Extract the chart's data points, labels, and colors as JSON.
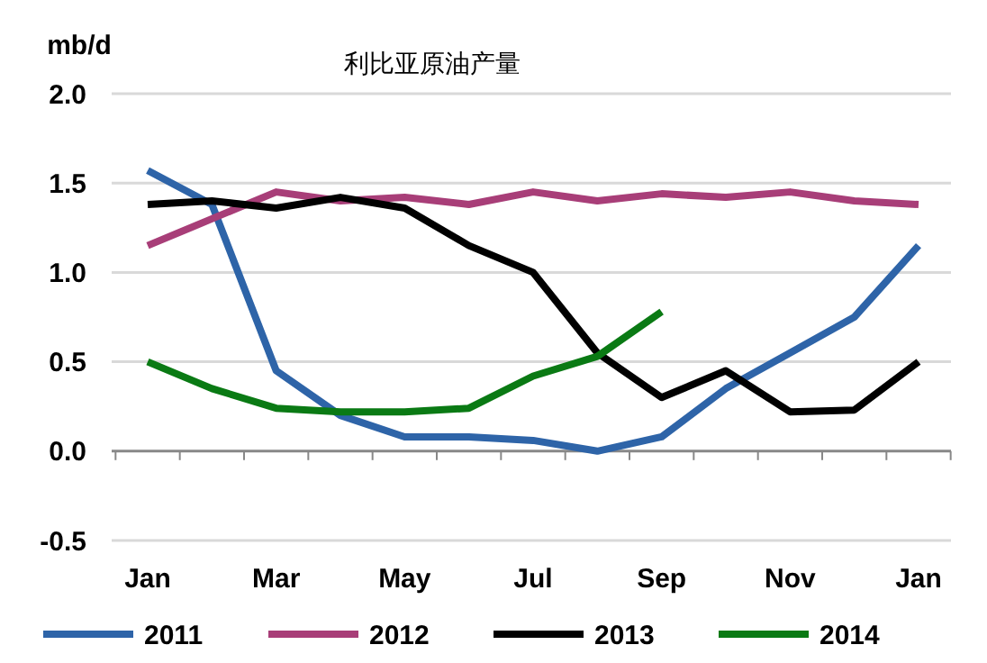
{
  "chart_data": {
    "type": "line",
    "title": "利比亚原油产量",
    "ylabel": "mb/d",
    "categories": [
      "Jan",
      null,
      "Mar",
      null,
      "May",
      null,
      "Jul",
      null,
      "Sep",
      null,
      "Nov",
      null,
      "Jan"
    ],
    "series": [
      {
        "name": "2011",
        "color": "#2e64a8",
        "values": [
          1.57,
          1.38,
          0.45,
          0.2,
          0.08,
          0.08,
          0.06,
          0.0,
          0.08,
          0.35,
          0.55,
          0.75,
          1.15
        ]
      },
      {
        "name": "2012",
        "color": "#a83e78",
        "values": [
          1.15,
          1.3,
          1.45,
          1.4,
          1.42,
          1.38,
          1.45,
          1.4,
          1.44,
          1.42,
          1.45,
          1.4,
          1.38
        ]
      },
      {
        "name": "2013",
        "color": "#000000",
        "values": [
          1.38,
          1.4,
          1.36,
          1.42,
          1.36,
          1.15,
          1.0,
          0.55,
          0.3,
          0.45,
          0.22,
          0.23,
          0.5
        ]
      },
      {
        "name": "2014",
        "color": "#0a7a14",
        "values": [
          0.5,
          0.35,
          0.24,
          0.22,
          0.22,
          0.24,
          0.42,
          0.53,
          0.78,
          null,
          null,
          null,
          null
        ]
      }
    ],
    "ylim": [
      -0.5,
      2.0
    ],
    "yticks": [
      {
        "value": -0.5,
        "label": "-0.5"
      },
      {
        "value": 0,
        "label": "0.0"
      },
      {
        "value": 0.5,
        "label": "0.5"
      },
      {
        "value": 1,
        "label": "1.0"
      },
      {
        "value": 1.5,
        "label": "1.5"
      },
      {
        "value": 2,
        "label": "2.0"
      }
    ],
    "grid": "y",
    "legend": "bottom",
    "line_style": "solid",
    "marker": "none"
  }
}
